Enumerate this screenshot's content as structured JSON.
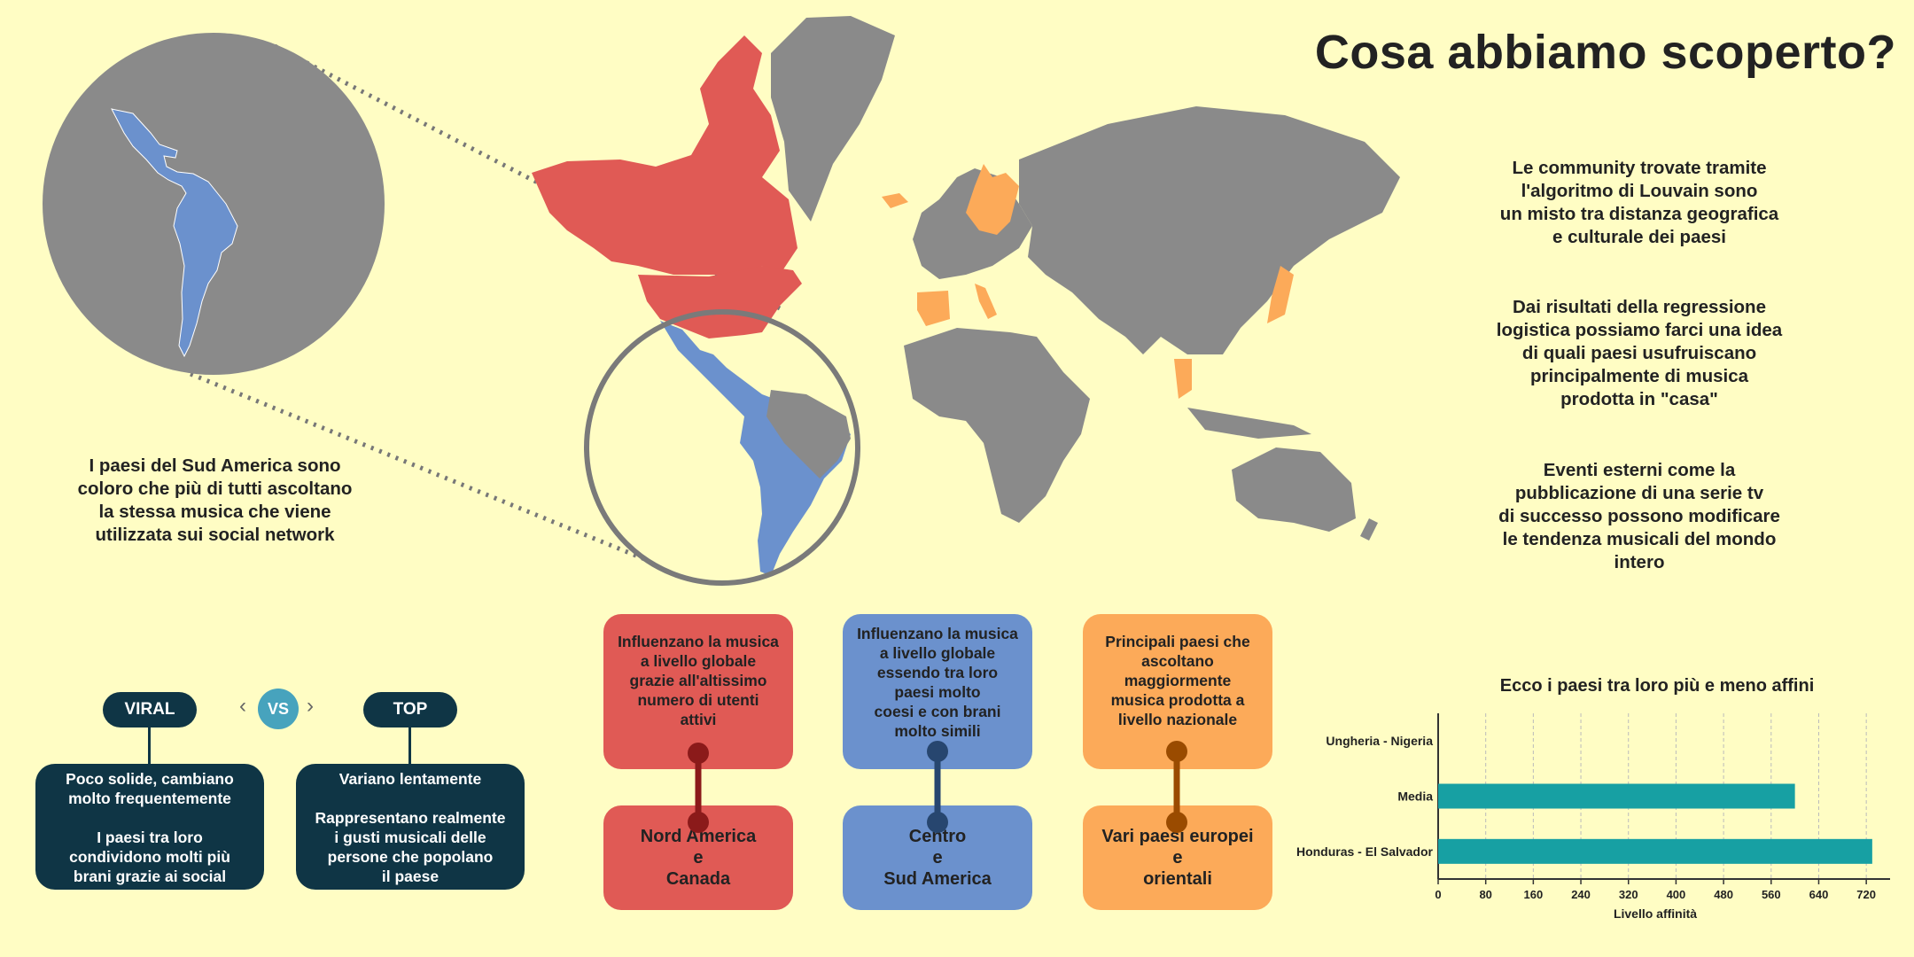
{
  "title": "Cosa abbiamo scoperto?",
  "colors": {
    "background": "#fffdc4",
    "north_america": "#e05a55",
    "south_america": "#6b91cd",
    "europe_asia": "#fcaa59",
    "other_land": "#8a8a8a",
    "dark": "#0f3545",
    "vs": "#47a3bd",
    "bar": "#17a0a3"
  },
  "map": {
    "left_text": "I paesi del Sud America sono\ncoloro che più di tutti ascoltano\nla stessa musica che viene\nutilizzata sui social network",
    "icon": "world-map-icon"
  },
  "right_texts": [
    "Le community trovate tramite\nl'algoritmo di Louvain sono\nun misto tra distanza geografica\ne culturale dei paesi",
    "Dai risultati della regressione\nlogistica possiamo farci una idea\ndi quali paesi usufruiscano\nprincipalmente di musica\nprodotta in \"casa\"",
    "Eventi esterni come la\npubblicazione di una serie tv\ndi successo possono modificare\nle tendenza musicali del mondo\nintero"
  ],
  "comparison": {
    "viral_label": "VIRAL",
    "vs_label": "VS",
    "top_label": "TOP",
    "viral_text": "Poco solide, cambiano\nmolto frequentemente\n\nI paesi tra loro\ncondividono molti più\nbrani grazie ai social",
    "top_text": "Variano lentamente\n\nRappresentano realmente\ni gusti musicali delle\npersone che popolano\nil paese"
  },
  "cards": [
    {
      "top": "Influenzano la musica\na livello globale\ngrazie all'altissimo\nnumero di utenti\nattivi",
      "bottom": "Nord America\ne\nCanada"
    },
    {
      "top": "Influenzano la musica\na livello globale\nessendo tra loro\npaesi molto\ncoesi e con brani\nmolto simili",
      "bottom": "Centro\ne\nSud America"
    },
    {
      "top": "Principali paesi che\nascoltano\nmaggiormente\nmusica prodotta a\nlivello nazionale",
      "bottom": "Vari paesi europei\ne\norientali"
    }
  ],
  "chart_data": {
    "type": "bar",
    "orientation": "horizontal",
    "title": "Ecco i paesi tra loro più e meno affini",
    "categories": [
      "Ungheria - Nigeria",
      "Media",
      "Honduras - El Salvador"
    ],
    "values": [
      0,
      600,
      730
    ],
    "xlabel": "Livello affinità",
    "ylabel": "",
    "xlim": [
      0,
      760
    ],
    "xticks": [
      0,
      80,
      160,
      240,
      320,
      400,
      480,
      560,
      640,
      720
    ],
    "grid": true
  }
}
